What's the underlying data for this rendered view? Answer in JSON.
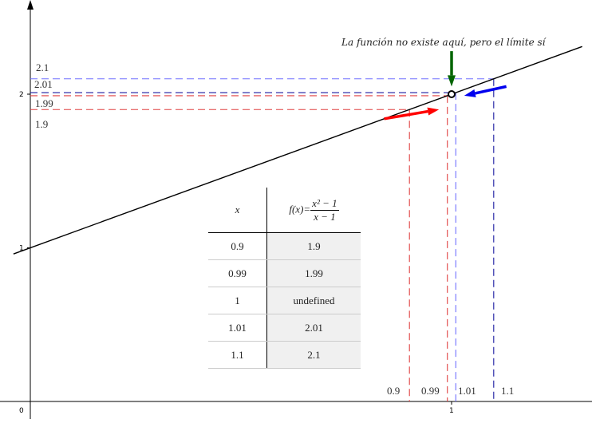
{
  "chart_data": {
    "type": "line",
    "function": "f(x)=(x^2-1)/(x-1)",
    "xlim": [
      -0.04,
      1.31
    ],
    "ylim": [
      -0.12,
      2.6
    ],
    "x_ticks": [
      "0",
      "1"
    ],
    "y_ticks": [
      "1",
      "2"
    ],
    "line": {
      "x": [
        -0.04,
        1.31
      ],
      "y": [
        0.96,
        2.31
      ],
      "color": "#000000"
    },
    "hole": {
      "x": 1,
      "y": 2
    },
    "dashed_guides": [
      {
        "x": 0.9,
        "y": 1.9,
        "color": "#e04040",
        "x_label": "0.9",
        "y_label": "1.9"
      },
      {
        "x": 0.99,
        "y": 1.99,
        "color": "#e04040",
        "x_label": "0.99",
        "y_label": "1.99"
      },
      {
        "x": 1.01,
        "y": 2.01,
        "xcolor": "#7070ff",
        "ycolor": "#1a1aa0",
        "x_label": "1.01",
        "y_label": "2.01"
      },
      {
        "x": 1.1,
        "y": 2.1,
        "xcolor": "#1a1aa0",
        "ycolor": "#7070ff",
        "x_label": "1.1",
        "y_label": "2.1"
      }
    ],
    "arrows": [
      {
        "from": [
          0.84,
          1.84
        ],
        "to": [
          0.97,
          1.9
        ],
        "color": "#ff0000"
      },
      {
        "from": [
          1.13,
          2.05
        ],
        "to": [
          1.03,
          1.99
        ],
        "color": "#0000ee"
      },
      {
        "from": [
          1.0,
          2.28
        ],
        "to": [
          1.0,
          2.05
        ],
        "color": "#006400"
      }
    ],
    "annotation": "La función no existe aquí, pero el límite sí"
  },
  "table": {
    "header": {
      "x": "x",
      "fx_prefix": "f(x)=",
      "fx_num": "x² − 1",
      "fx_den": "x − 1"
    },
    "rows": [
      {
        "x": "0.9",
        "fx": "1.9"
      },
      {
        "x": "0.99",
        "fx": "1.99"
      },
      {
        "x": "1",
        "fx": "undefined"
      },
      {
        "x": "1.01",
        "fx": "2.01"
      },
      {
        "x": "1.1",
        "fx": "2.1"
      }
    ]
  }
}
